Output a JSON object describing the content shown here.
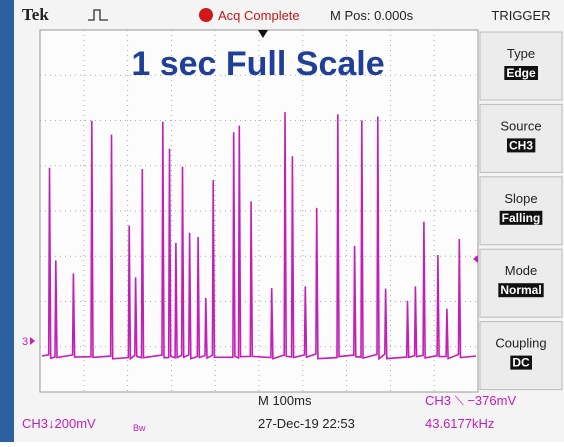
{
  "header": {
    "brand": "Tek",
    "status": "Acq Complete",
    "position": "M Pos: 0.000s"
  },
  "overlay": {
    "title": "1 sec Full Scale"
  },
  "menu": {
    "title": "TRIGGER",
    "items": [
      {
        "label": "Type",
        "value": "Edge"
      },
      {
        "label": "Source",
        "value": "CH3"
      },
      {
        "label": "Slope",
        "value": "Falling"
      },
      {
        "label": "Mode",
        "value": "Normal"
      },
      {
        "label": "Coupling",
        "value": "DC"
      }
    ]
  },
  "screen": {
    "channel_marker": "3"
  },
  "footer": {
    "channel": "CH3↓200mV",
    "bandwidth": "Bw",
    "timebase": "M 100ms",
    "datetime": "27-Dec-19 22:53",
    "trigger": "CH3 ⟍ −376mV",
    "frequency": "43.6177kHz"
  }
}
